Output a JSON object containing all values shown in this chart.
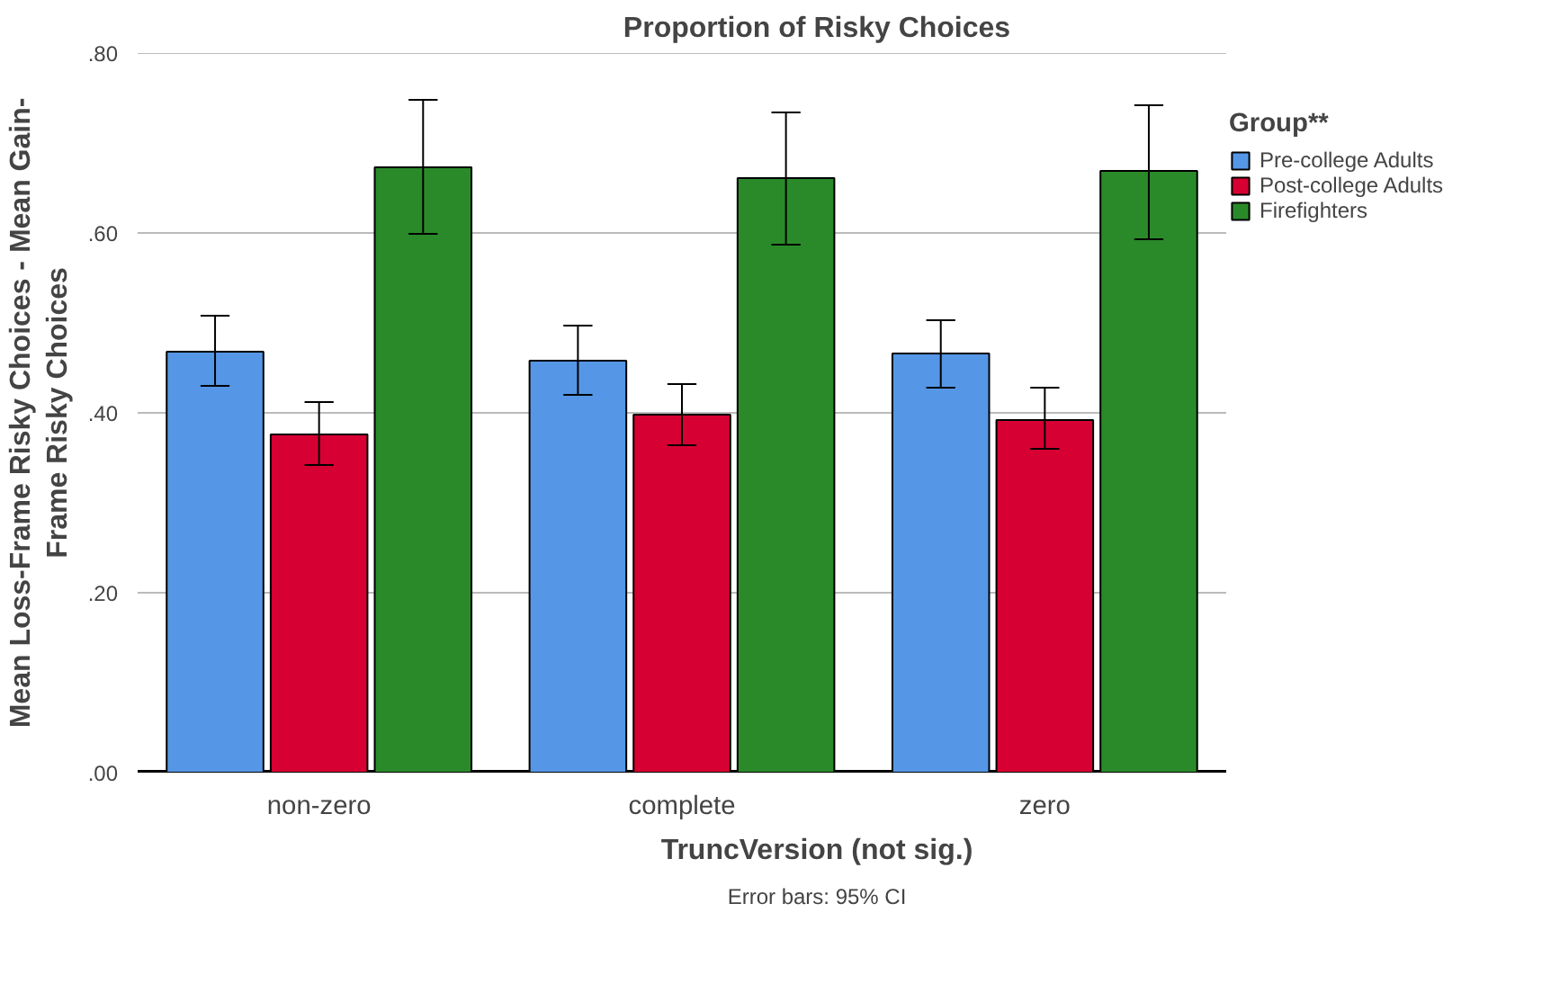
{
  "chart_data": {
    "type": "bar",
    "title": "Proportion of Risky Choices",
    "xlabel": "TruncVersion (not sig.)",
    "ylabel": "Mean Loss-Frame Risky Choices - Mean Gain-\nFrame Risky Choices",
    "legend_title": "Group**",
    "categories": [
      "non-zero",
      "complete",
      "zero"
    ],
    "series": [
      {
        "name": "Pre-college Adults",
        "color": "#5597e6",
        "values": [
          0.468,
          0.458,
          0.466
        ],
        "errors": [
          [
            0.43,
            0.508
          ],
          [
            0.42,
            0.497
          ],
          [
            0.428,
            0.503
          ]
        ]
      },
      {
        "name": "Post-college Adults",
        "color": "#d70033",
        "values": [
          0.376,
          0.398,
          0.392
        ],
        "errors": [
          [
            0.342,
            0.412
          ],
          [
            0.364,
            0.432
          ],
          [
            0.36,
            0.428
          ]
        ]
      },
      {
        "name": "Firefighters",
        "color": "#2a8a2a",
        "values": [
          0.673,
          0.661,
          0.669
        ],
        "errors": [
          [
            0.599,
            0.748
          ],
          [
            0.587,
            0.734
          ],
          [
            0.593,
            0.742
          ]
        ]
      }
    ],
    "ylim": [
      0,
      0.8
    ],
    "yticks": [
      {
        "value": 0,
        "label": ".00"
      },
      {
        "value": 0.2,
        "label": ".20"
      },
      {
        "value": 0.4,
        "label": ".40"
      },
      {
        "value": 0.6,
        "label": ".60"
      },
      {
        "value": 0.8,
        "label": ".80"
      }
    ],
    "grid": "y",
    "legend": "right",
    "annotations": [
      "Error bars: 95% CI"
    ]
  }
}
